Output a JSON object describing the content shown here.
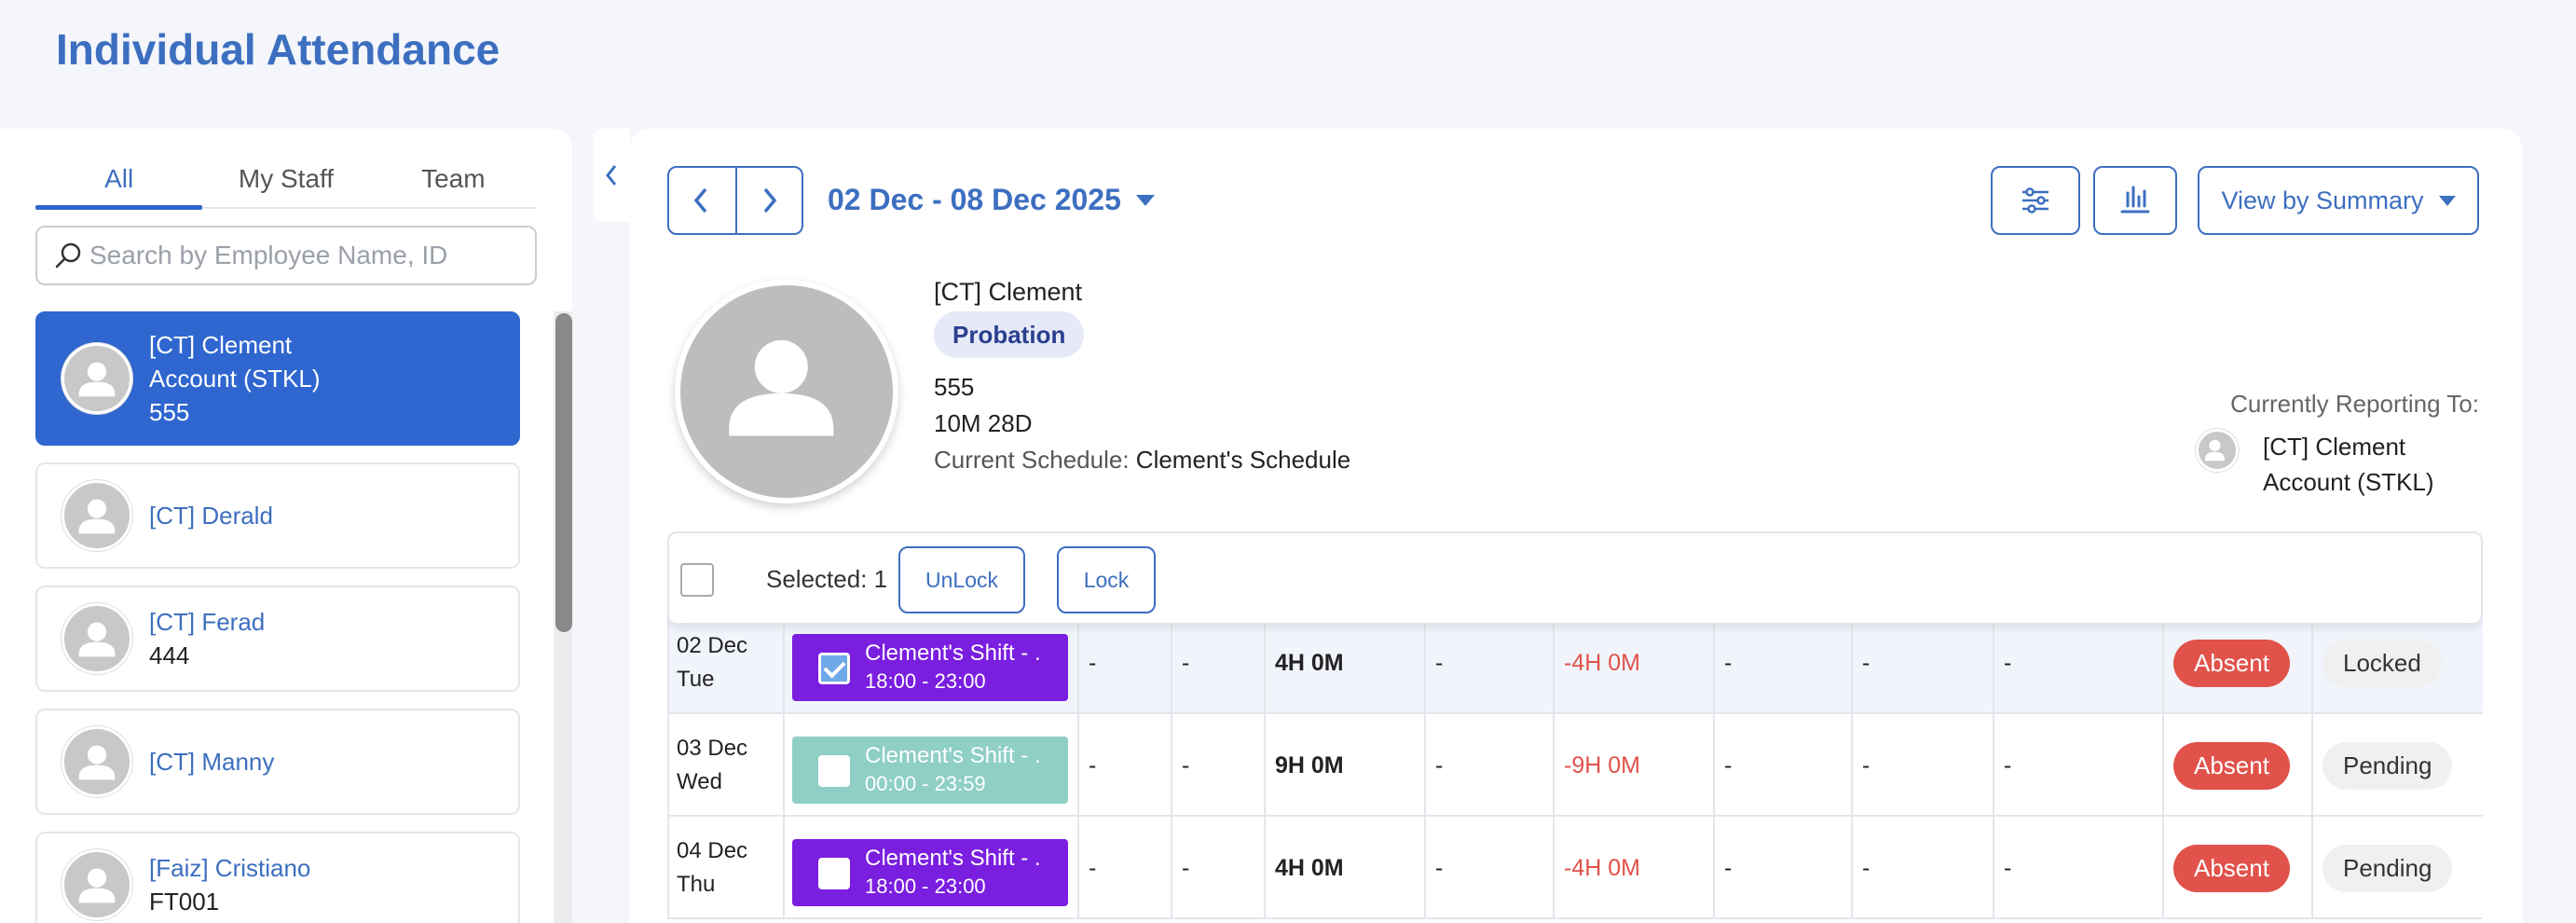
{
  "page": {
    "title": "Individual Attendance"
  },
  "tabs": [
    "All",
    "My Staff",
    "Team"
  ],
  "search": {
    "placeholder": "Search by Employee Name, ID"
  },
  "employees": [
    {
      "name": "[CT] Clement",
      "sub": "Account (STKL)",
      "id": "555"
    },
    {
      "name": "[CT] Derald"
    },
    {
      "name": "[CT] Ferad",
      "id": "444"
    },
    {
      "name": "[CT] Manny"
    },
    {
      "name": "[Faiz] Cristiano",
      "id": "FT001"
    }
  ],
  "header": {
    "date_range": "02 Dec - 08 Dec 2025",
    "view_label": "View by Summary"
  },
  "profile": {
    "name": "[CT] Clement",
    "status_badge": "Probation",
    "id": "555",
    "tenure": "10M 28D",
    "schedule_label": "Current Schedule:",
    "schedule_value": "Clement's Schedule",
    "reporting_label": "Currently Reporting To:",
    "reporting_name": "[CT] Clement",
    "reporting_sub": "Account (STKL)"
  },
  "toolbar": {
    "selected": "Selected: 1",
    "unlock": "UnLock",
    "lock": "Lock"
  },
  "rows": [
    {
      "date": "02 Dec",
      "day": "Tue",
      "shift": "Clement's Shift - .",
      "shift_time": "18:00 - 23:00",
      "shift_color": "#7a1ee0",
      "checked": true,
      "c1": "-",
      "c2": "-",
      "c3": "4H 0M",
      "c4": "-",
      "c5": "-4H 0M",
      "c6": "-",
      "c7": "-",
      "c8": "-",
      "attendance": "Absent",
      "status": "Locked"
    },
    {
      "date": "03 Dec",
      "day": "Wed",
      "shift": "Clement's Shift - .",
      "shift_time": "00:00 - 23:59",
      "shift_color": "#8fcfc6",
      "checked": false,
      "c1": "-",
      "c2": "-",
      "c3": "9H 0M",
      "c4": "-",
      "c5": "-9H 0M",
      "c6": "-",
      "c7": "-",
      "c8": "-",
      "attendance": "Absent",
      "status": "Pending"
    },
    {
      "date": "04 Dec",
      "day": "Thu",
      "shift": "Clement's Shift - .",
      "shift_time": "18:00 - 23:00",
      "shift_color": "#7a1ee0",
      "checked": false,
      "c1": "-",
      "c2": "-",
      "c3": "4H 0M",
      "c4": "-",
      "c5": "-4H 0M",
      "c6": "-",
      "c7": "-",
      "c8": "-",
      "attendance": "Absent",
      "status": "Pending"
    }
  ]
}
